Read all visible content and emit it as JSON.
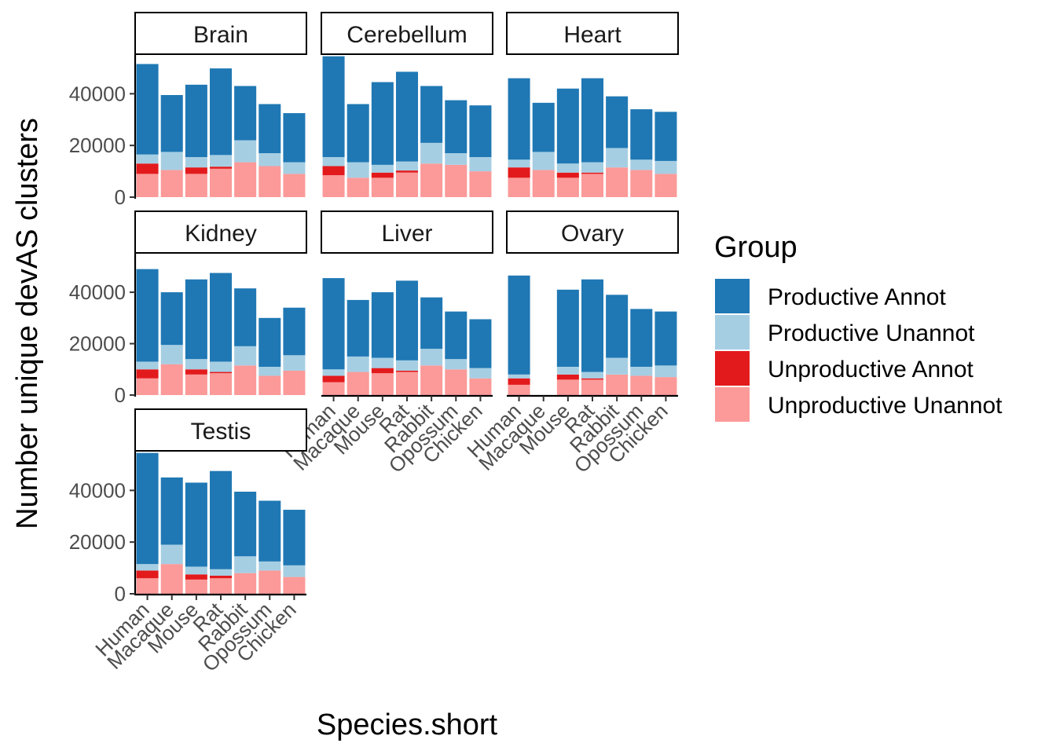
{
  "chart_data": {
    "type": "bar",
    "stacked": true,
    "faceted": true,
    "xlabel": "Species.short",
    "ylabel": "Number unique devAS clusters",
    "ylim": [
      0,
      55000
    ],
    "yticks": [
      0,
      20000,
      40000
    ],
    "categories": [
      "Human",
      "Macaque",
      "Mouse",
      "Rat",
      "Rabbit",
      "Opossum",
      "Chicken"
    ],
    "legend": {
      "title": "Group",
      "position": "right",
      "entries": [
        {
          "name": "Productive Annot",
          "color": "#1f78b4"
        },
        {
          "name": "Productive Unannot",
          "color": "#a6cee3"
        },
        {
          "name": "Unproductive Annot",
          "color": "#e31a1c"
        },
        {
          "name": "Unproductive Unannot",
          "color": "#fb9a99"
        }
      ]
    },
    "stack_order_bottom_to_top": [
      "Unproductive Unannot",
      "Unproductive Annot",
      "Productive Unannot",
      "Productive Annot"
    ],
    "facets": [
      {
        "name": "Brain",
        "values": {
          "Unproductive Unannot": [
            9000,
            10500,
            9000,
            11000,
            13500,
            12000,
            9000
          ],
          "Unproductive Annot": [
            4000,
            0,
            2500,
            800,
            0,
            0,
            0
          ],
          "Productive Unannot": [
            3500,
            7000,
            4000,
            4500,
            8500,
            5000,
            4500
          ],
          "Productive Annot": [
            35000,
            22000,
            28000,
            33500,
            21000,
            19000,
            19000
          ]
        }
      },
      {
        "name": "Cerebellum",
        "values": {
          "Unproductive Unannot": [
            8500,
            7500,
            7500,
            9500,
            13000,
            12500,
            10000
          ],
          "Unproductive Annot": [
            3500,
            0,
            2000,
            800,
            0,
            0,
            0
          ],
          "Productive Unannot": [
            3500,
            6000,
            3000,
            3500,
            8000,
            4500,
            5500
          ],
          "Productive Annot": [
            39000,
            22500,
            32000,
            34700,
            22000,
            20500,
            20000
          ]
        }
      },
      {
        "name": "Heart",
        "values": {
          "Unproductive Unannot": [
            7500,
            10500,
            7500,
            9000,
            11500,
            10500,
            9000
          ],
          "Unproductive Annot": [
            4000,
            0,
            2000,
            500,
            0,
            0,
            0
          ],
          "Productive Unannot": [
            3000,
            7000,
            3500,
            4000,
            7500,
            4000,
            5000
          ],
          "Productive Annot": [
            31500,
            19000,
            29000,
            32500,
            20000,
            19500,
            19000
          ]
        }
      },
      {
        "name": "Kidney",
        "values": {
          "Unproductive Unannot": [
            6500,
            12000,
            8000,
            8500,
            11500,
            7500,
            9500
          ],
          "Unproductive Annot": [
            3500,
            0,
            2000,
            500,
            0,
            0,
            0
          ],
          "Productive Unannot": [
            3000,
            7500,
            4000,
            4000,
            7500,
            3500,
            6000
          ],
          "Productive Annot": [
            36000,
            20500,
            31000,
            34500,
            22500,
            19000,
            18500
          ]
        }
      },
      {
        "name": "Liver",
        "values": {
          "Unproductive Unannot": [
            5000,
            9000,
            8500,
            9000,
            11500,
            10000,
            6500
          ],
          "Unproductive Annot": [
            2500,
            0,
            2000,
            500,
            0,
            0,
            0
          ],
          "Productive Unannot": [
            2500,
            6000,
            4000,
            4000,
            6500,
            4000,
            4000
          ],
          "Productive Annot": [
            35500,
            22000,
            25500,
            31000,
            20000,
            18500,
            19000
          ]
        }
      },
      {
        "name": "Ovary",
        "values": {
          "Unproductive Unannot": [
            4000,
            0,
            6000,
            6000,
            8000,
            7500,
            7000
          ],
          "Unproductive Annot": [
            2500,
            0,
            2000,
            500,
            0,
            0,
            0
          ],
          "Productive Unannot": [
            1500,
            0,
            3000,
            2500,
            6500,
            3500,
            4500
          ],
          "Productive Annot": [
            38500,
            0,
            30000,
            36000,
            24500,
            22500,
            21000
          ]
        }
      },
      {
        "name": "Testis",
        "values": {
          "Unproductive Unannot": [
            6000,
            11500,
            5500,
            6000,
            8000,
            9000,
            6500
          ],
          "Unproductive Annot": [
            3000,
            0,
            2000,
            1000,
            0,
            0,
            0
          ],
          "Productive Unannot": [
            2500,
            7500,
            3000,
            2500,
            6500,
            3500,
            4500
          ],
          "Productive Annot": [
            43000,
            26000,
            32500,
            38000,
            25000,
            23500,
            21500
          ]
        }
      }
    ]
  }
}
